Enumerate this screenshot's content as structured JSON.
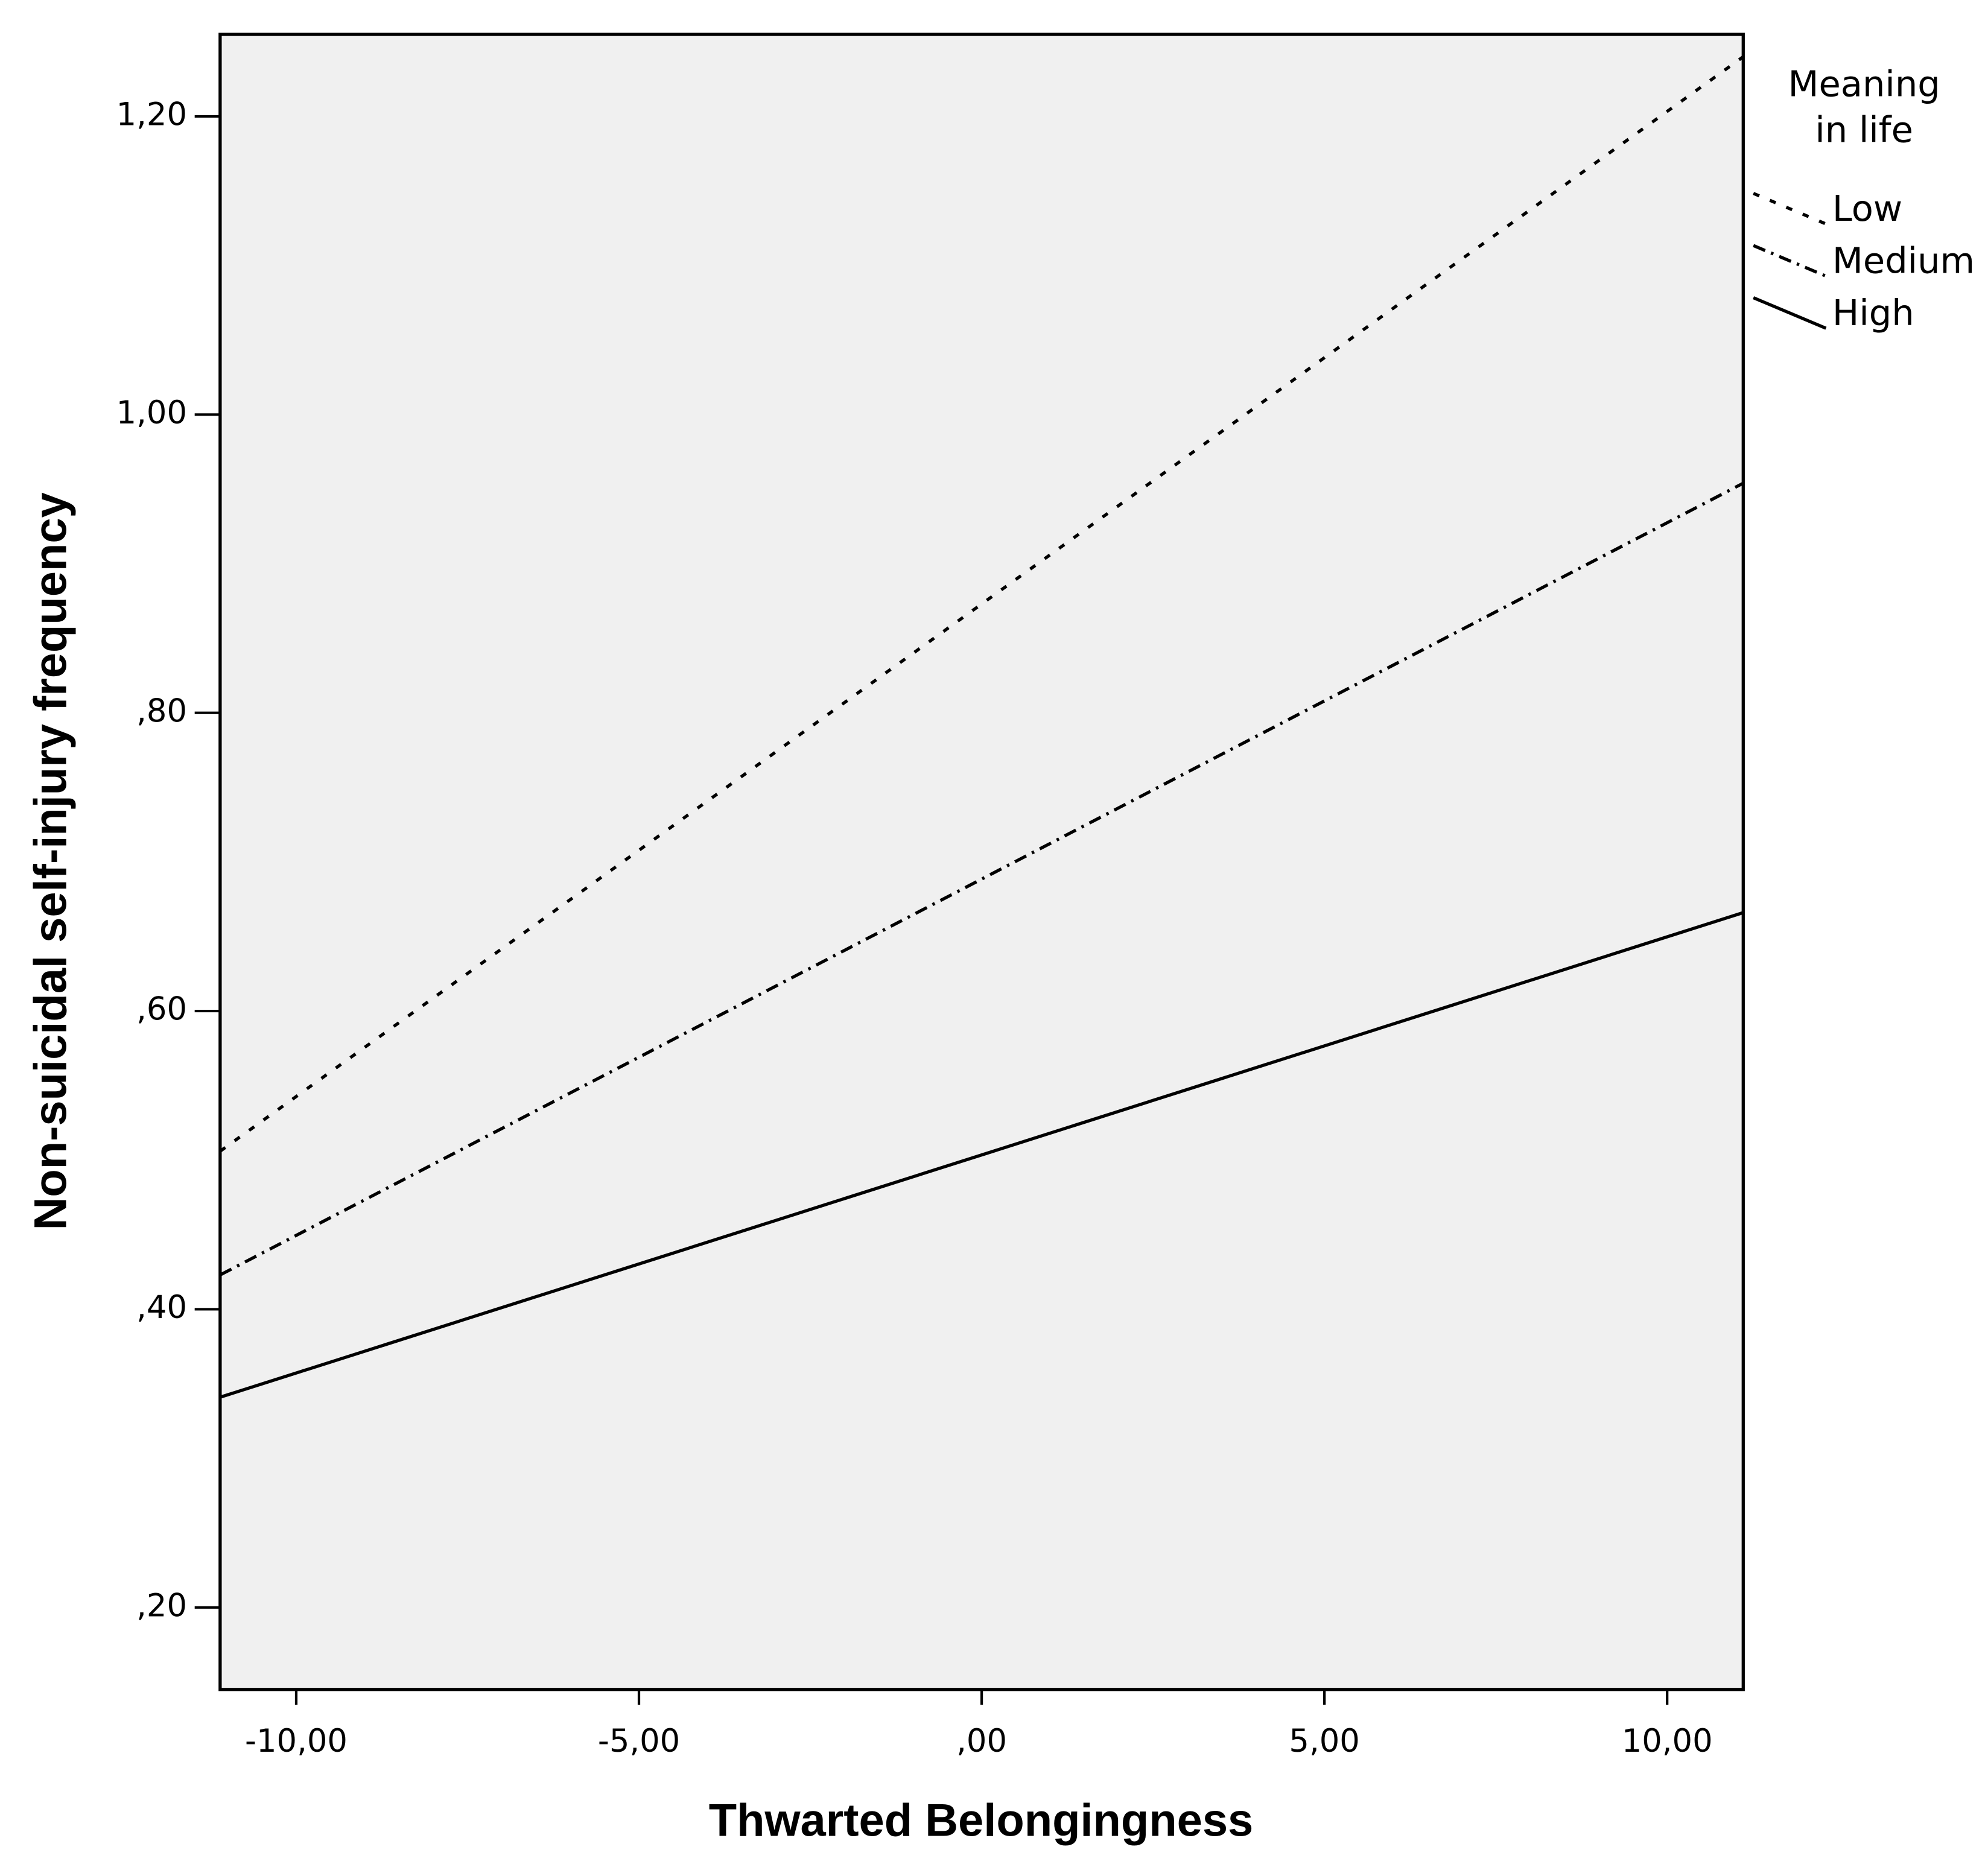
{
  "chart_data": {
    "type": "line",
    "x_label": "Thwarted Belongingness",
    "y_label": "Non-suicidal self-injury frequency",
    "legend_title": [
      "Meaning",
      "in life"
    ],
    "legend_position": "outside-right",
    "background": "#f0f0f0",
    "x": [
      -11.11,
      11.11
    ],
    "series": [
      {
        "name": "Low",
        "color": "#000000",
        "style": "dotted",
        "values": [
          0.506,
          1.24
        ]
      },
      {
        "name": "Medium",
        "color": "#000000",
        "style": "dashdot",
        "values": [
          0.423,
          0.954
        ]
      },
      {
        "name": "High",
        "color": "#000000",
        "style": "solid",
        "values": [
          0.341,
          0.666
        ]
      }
    ],
    "xlim": [
      -11.11,
      11.11
    ],
    "ylim": [
      0.145,
      1.255
    ],
    "xticks": [
      {
        "value": -10,
        "label": "-10,00"
      },
      {
        "value": -5,
        "label": "-5,00"
      },
      {
        "value": 0,
        "label": ",00"
      },
      {
        "value": 5,
        "label": "5,00"
      },
      {
        "value": 10,
        "label": "10,00"
      }
    ],
    "yticks": [
      {
        "value": 0.2,
        "label": ",20"
      },
      {
        "value": 0.4,
        "label": ",40"
      },
      {
        "value": 0.6,
        "label": ",60"
      },
      {
        "value": 0.8,
        "label": ",80"
      },
      {
        "value": 1.0,
        "label": "1,00"
      },
      {
        "value": 1.2,
        "label": "1,20"
      }
    ],
    "grid": false
  }
}
